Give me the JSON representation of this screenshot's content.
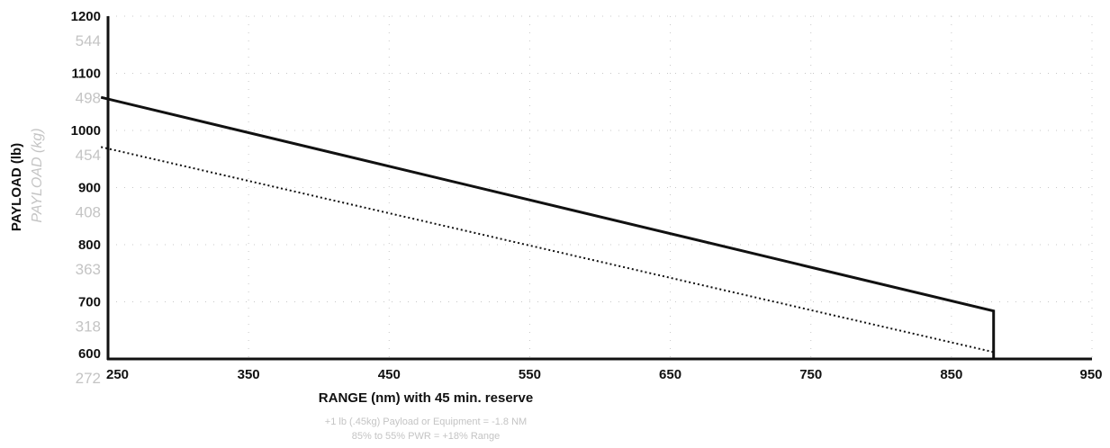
{
  "chart_data": {
    "type": "line",
    "xlabel": "RANGE (nm) with 45 min. reserve",
    "ylabel": "PAYLOAD (lb)",
    "ylabel_secondary": "PAYLOAD (kg)",
    "xlim": [
      250,
      950
    ],
    "ylim": [
      600,
      1200
    ],
    "x_ticks": [
      "250",
      "350",
      "450",
      "550",
      "650",
      "750",
      "850",
      "950"
    ],
    "y_ticks": [
      "600",
      "700",
      "800",
      "900",
      "1000",
      "1100",
      "1200"
    ],
    "y_ticks_secondary": [
      "272",
      "318",
      "363",
      "408",
      "454",
      "498",
      "544"
    ],
    "grid": true,
    "series": [
      {
        "style": "solid",
        "color": "#111111",
        "points": [
          [
            245,
            1058
          ],
          [
            880,
            684
          ],
          [
            880,
            600
          ]
        ]
      },
      {
        "style": "dotted",
        "color": "#111111",
        "points": [
          [
            245,
            971
          ],
          [
            880,
            612
          ]
        ]
      }
    ],
    "footnotes": [
      "+1 lb (.45kg) Payload or Equipment = -1.8 NM",
      "85% to 55% PWR = +18% Range"
    ]
  }
}
